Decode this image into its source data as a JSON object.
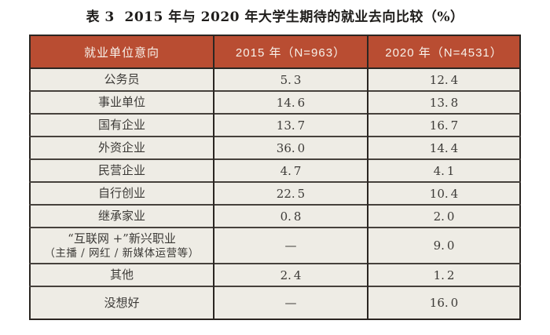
{
  "title": "表 3  2015 年与 2020 年大学生期待的就业去向比较（%）",
  "table": {
    "headers": [
      "就业单位意向",
      "2015 年（N=963）",
      "2020 年（N=4531）"
    ],
    "rows": [
      {
        "label": "公务员",
        "v2015": "5.3",
        "v2020": "12.4"
      },
      {
        "label": "事业单位",
        "v2015": "14.6",
        "v2020": "13.8"
      },
      {
        "label": "国有企业",
        "v2015": "13.7",
        "v2020": "16.7"
      },
      {
        "label": "外资企业",
        "v2015": "36.0",
        "v2020": "14.4"
      },
      {
        "label": "民营企业",
        "v2015": "4.7",
        "v2020": "4.1"
      },
      {
        "label": "自行创业",
        "v2015": "22.5",
        "v2020": "10.4"
      },
      {
        "label": "继承家业",
        "v2015": "0.8",
        "v2020": "2.0"
      },
      {
        "label": "“互联网 +”新兴职业",
        "label2": "（主播 / 网红 / 新媒体运营等）",
        "v2015": "—",
        "v2020": "9.0"
      },
      {
        "label": "其他",
        "v2015": "2.4",
        "v2020": "1.2"
      },
      {
        "label": "没想好",
        "v2015": "—",
        "v2020": "16.0"
      }
    ]
  },
  "colors": {
    "page_bg": "#ffffff",
    "header_bg": "#b94d32",
    "header_text": "#f7f1ea",
    "row_bg": "#eeece5",
    "border": "#2b2622",
    "row_divider": "#46413c",
    "body_text": "#3c3a37",
    "title_text": "#1f1d1b"
  },
  "chart_data": {
    "type": "table",
    "title": "表 3 2015 年与 2020 年大学生期待的就业去向比较（%）",
    "columns": [
      "就业单位意向",
      "2015 年（N=963）",
      "2020 年（N=4531）"
    ],
    "categories": [
      "公务员",
      "事业单位",
      "国有企业",
      "外资企业",
      "民营企业",
      "自行创业",
      "继承家业",
      "“互联网 +”新兴职业（主播 / 网红 / 新媒体运营等）",
      "其他",
      "没想好"
    ],
    "series": [
      {
        "name": "2015 年（N=963）",
        "values": [
          5.3,
          14.6,
          13.7,
          36.0,
          4.7,
          22.5,
          0.8,
          null,
          2.4,
          null
        ]
      },
      {
        "name": "2020 年（N=4531）",
        "values": [
          12.4,
          13.8,
          16.7,
          14.4,
          4.1,
          10.4,
          2.0,
          9.0,
          1.2,
          16.0
        ]
      }
    ],
    "missing_marker": "—",
    "unit": "%"
  }
}
